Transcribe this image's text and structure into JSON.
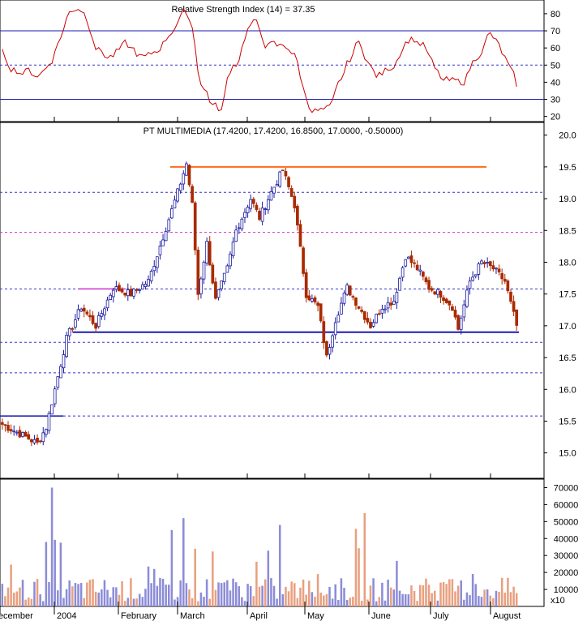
{
  "rsi_panel": {
    "title": "Relative Strength Index (14) = 37.35",
    "ticks": [
      20,
      30,
      40,
      50,
      60,
      70,
      80
    ],
    "ylim": [
      17,
      88
    ],
    "bands": [
      30,
      50,
      70
    ]
  },
  "price_panel": {
    "title": "PT MULTIMEDIA (17.4200, 17.4200, 16.8500, 17.0000, -0.50000)",
    "ticks": [
      "15.0",
      "15.5",
      "16.0",
      "16.5",
      "17.0",
      "17.5",
      "18.0",
      "18.5",
      "19.0",
      "19.5",
      "20.0"
    ],
    "tick_values": [
      15.0,
      15.5,
      16.0,
      16.5,
      17.0,
      17.5,
      18.0,
      18.5,
      19.0,
      19.5,
      20.0
    ],
    "ylim": [
      14.6,
      20.2
    ],
    "resistance": 19.5,
    "support": 16.9,
    "levels": [
      19.1,
      18.47,
      17.58,
      16.74,
      16.26,
      15.58
    ]
  },
  "volume_panel": {
    "ticks": [
      "10000",
      "20000",
      "30000",
      "40000",
      "50000",
      "60000",
      "70000"
    ],
    "tick_values": [
      10000,
      20000,
      30000,
      40000,
      50000,
      60000,
      70000
    ],
    "ylim": [
      0,
      75000
    ],
    "multiplier": "x10"
  },
  "x_axis": {
    "months": [
      "December",
      "2004",
      "February",
      "March",
      "April",
      "May",
      "June",
      "July",
      "August"
    ]
  },
  "colors": {
    "up": "#1a1aa0",
    "down": "#aa2a00",
    "vol_up": "#8c8cd8",
    "vol_down": "#e8a080",
    "rsi_line": "#cc0000",
    "resistance": "#ff6a1a",
    "support": "#1a1ab0",
    "level": "#cc33cc",
    "dashed": "#3333cc"
  },
  "chart_data": [
    {
      "type": "line",
      "title": "Relative Strength Index (14) = 37.35",
      "x": [
        "Dec",
        "Jan",
        "Jan",
        "Feb",
        "Feb",
        "Mar",
        "Mar",
        "Apr",
        "Apr",
        "May",
        "May",
        "Jun",
        "Jun",
        "Jul",
        "Jul",
        "Aug"
      ],
      "series": [
        {
          "name": "",
          "values": [
            60,
            52,
            70,
            85,
            75,
            87,
            42,
            46,
            62,
            68,
            28,
            40,
            62,
            35,
            58,
            36
          ]
        }
      ],
      "ylim": [
        17,
        88
      ]
    },
    {
      "type": "line",
      "title": "PT MULTIMEDIA (17.4200, 17.4200, 16.8500, 17.0000, -0.50000)",
      "x": [
        "Dec",
        "Jan",
        "Jan",
        "Feb",
        "Feb",
        "Mar",
        "Mar",
        "Apr",
        "Apr",
        "May",
        "May",
        "Jun",
        "Jun",
        "Jul",
        "Jul",
        "Aug"
      ],
      "series": [
        {
          "name": "",
          "values": [
            15.4,
            15.2,
            16.6,
            17.3,
            17.6,
            19.5,
            17.5,
            18.9,
            19.4,
            17.0,
            16.6,
            17.3,
            18.1,
            17.3,
            18.0,
            17.0
          ]
        }
      ],
      "ylim": [
        14.6,
        20.2
      ]
    },
    {
      "type": "bar",
      "title": "",
      "categories": [
        "Dec",
        "Jan",
        "Jan",
        "Feb",
        "Feb",
        "Mar",
        "Mar",
        "Apr",
        "Apr",
        "May",
        "May",
        "Jun",
        "Jun",
        "Jul",
        "Jul",
        "Aug"
      ],
      "values": [
        8000,
        70000,
        15000,
        28000,
        45000,
        52000,
        30000,
        48000,
        25000,
        20000,
        55000,
        15000,
        18000,
        22000,
        15000,
        17000
      ],
      "ylim": [
        0,
        75000
      ]
    }
  ]
}
